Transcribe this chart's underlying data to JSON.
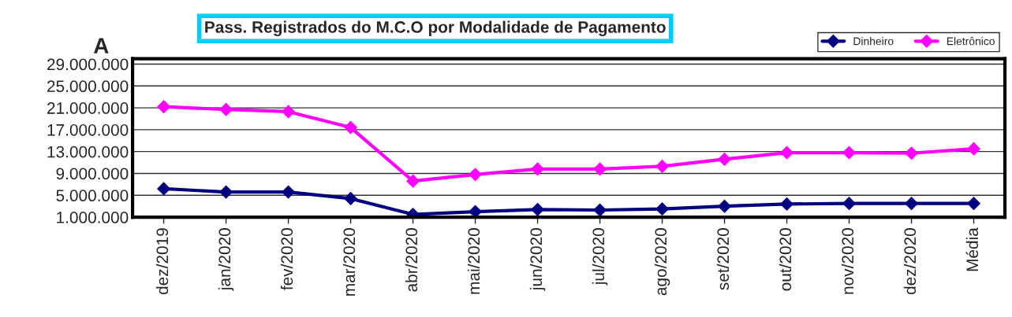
{
  "chart_data": {
    "type": "line",
    "title": "Pass. Registrados do M.C.O por Modalidade de Pagamento",
    "annotations": [
      "A"
    ],
    "categories": [
      "dez/2019",
      "jan/2020",
      "fev/2020",
      "mar/2020",
      "abr/2020",
      "mai/2020",
      "jun/2020",
      "jul/2020",
      "ago/2020",
      "set/2020",
      "out/2020",
      "nov/2020",
      "dez/2020",
      "Média"
    ],
    "series": [
      {
        "name": "Dinheiro",
        "color": "#000080",
        "values": [
          6200000,
          5600000,
          5600000,
          4400000,
          1500000,
          2000000,
          2400000,
          2300000,
          2500000,
          3000000,
          3400000,
          3500000,
          3500000,
          3500000
        ]
      },
      {
        "name": "Eletrônico",
        "color": "#ff00ff",
        "values": [
          21200000,
          20700000,
          20300000,
          17400000,
          7600000,
          8800000,
          9800000,
          9800000,
          10300000,
          11600000,
          12800000,
          12800000,
          12700000,
          13500000
        ]
      }
    ],
    "ylim": [
      1000000,
      30000000
    ],
    "yticks": [
      {
        "value": 1000000,
        "label": "1.000.000"
      },
      {
        "value": 5000000,
        "label": "5.000.000"
      },
      {
        "value": 9000000,
        "label": "9.000.000"
      },
      {
        "value": 13000000,
        "label": "13.000.000"
      },
      {
        "value": 17000000,
        "label": "17.000.000"
      },
      {
        "value": 21000000,
        "label": "21.000.000"
      },
      {
        "value": 25000000,
        "label": "25.000.000"
      },
      {
        "value": 29000000,
        "label": "29.000.000"
      }
    ],
    "grid": "y",
    "legend": "top right",
    "marker": "diamond",
    "line_style": "solid"
  }
}
